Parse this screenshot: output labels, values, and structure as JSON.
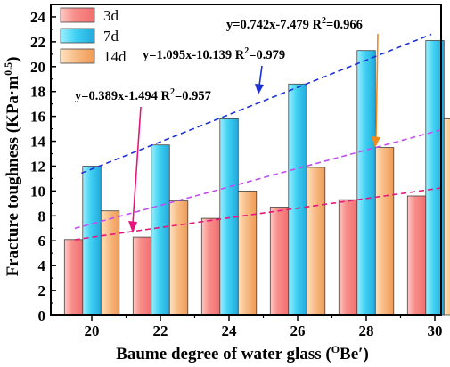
{
  "chart_data": {
    "type": "bar",
    "xlabel_main": "Baume degree of water glass (",
    "xlabel_sup": "O",
    "xlabel_tail": "Be′)",
    "ylabel_main": "Fracture toughness (KPa·m",
    "ylabel_sup": "0.5",
    "ylabel_tail": ")",
    "categories": [
      "20",
      "22",
      "24",
      "26",
      "28",
      "30"
    ],
    "ylim": [
      0,
      25
    ],
    "yticks": [
      "0",
      "2",
      "4",
      "6",
      "8",
      "10",
      "12",
      "14",
      "16",
      "18",
      "20",
      "22",
      "24"
    ],
    "legend_position": "top-left",
    "series": [
      {
        "name": "3d",
        "color": "#fa8a8a",
        "values": [
          6.1,
          6.3,
          7.8,
          8.7,
          9.3,
          9.6
        ]
      },
      {
        "name": "7d",
        "color": "#4fd2ef",
        "values": [
          12.0,
          13.7,
          15.8,
          18.6,
          21.3,
          22.1
        ]
      },
      {
        "name": "14d",
        "color": "#f8c08a",
        "values": [
          8.4,
          9.2,
          10.0,
          11.9,
          13.5,
          15.8
        ]
      }
    ],
    "trendlines": [
      {
        "series": "3d",
        "color": "#e5177c",
        "slope": 0.389,
        "intercept": -1.494,
        "x_range": [
          19.5,
          30.2
        ],
        "eq_text": "y=0.389x-1.494  R",
        "r2_sup": "2",
        "r2_value": "=0.957"
      },
      {
        "series": "7d",
        "color": "#1d2fd6",
        "slope": 1.095,
        "intercept": -10.139,
        "x_range": [
          19.7,
          29.9
        ],
        "eq_text": "y=1.095x-10.139  R",
        "r2_sup": "2",
        "r2_value": "=0.979"
      },
      {
        "series": "14d",
        "color": "#c24df0",
        "slope": 0.742,
        "intercept": -7.479,
        "x_range": [
          19.5,
          30.2
        ],
        "eq_text": "y=0.742x-7.479  R",
        "r2_sup": "2",
        "r2_value": "=0.966"
      }
    ]
  }
}
